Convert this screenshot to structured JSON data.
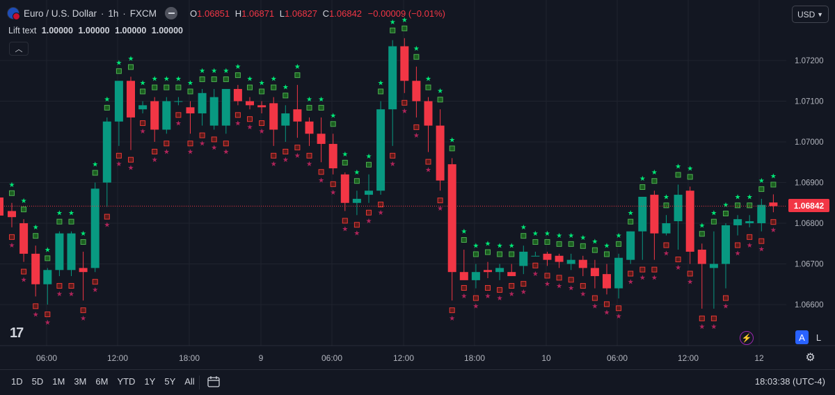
{
  "header": {
    "symbol": "Euro / U.S. Dollar",
    "interval": "1h",
    "exchange": "FXCM",
    "ohlc": {
      "o_label": "O",
      "o": "1.06851",
      "h_label": "H",
      "h": "1.06871",
      "l_label": "L",
      "l": "1.06827",
      "c_label": "C",
      "c": "1.06842",
      "change": "−0.00009 (−0.01%)"
    },
    "indicator_name": "Lift text",
    "indicator_values": [
      "1.00000",
      "1.00000",
      "1.00000",
      "1.00000"
    ],
    "collapse_icon": "chevron-up-icon"
  },
  "currency": "USD",
  "last_price_label": "1.06842",
  "colors": {
    "up": "#089981",
    "down": "#f23645",
    "star_up": "#00e676",
    "star_down": "#b0245a",
    "box_up": "#4caf50",
    "box_down": "#e53935",
    "bg": "#131722",
    "grid": "#1f232e"
  },
  "buttons": {
    "auto": "A",
    "log": "L"
  },
  "toolbar": {
    "ranges": [
      "1D",
      "5D",
      "1M",
      "3M",
      "6M",
      "YTD",
      "1Y",
      "5Y",
      "All"
    ],
    "clock": "18:03:38 (UTC-4)"
  },
  "chart_data": {
    "type": "candlestick",
    "y_axis": {
      "ticks": [
        1.072,
        1.071,
        1.07,
        1.069,
        1.068,
        1.067,
        1.066
      ],
      "tick_labels": [
        "1.07200",
        "1.07100",
        "1.07000",
        "1.06900",
        "1.06800",
        "1.06700",
        "1.06600"
      ]
    },
    "x_axis": {
      "tick_labels": [
        "06:00",
        "12:00",
        "18:00",
        "9",
        "06:00",
        "12:00",
        "18:00",
        "10",
        "06:00",
        "12:00",
        "12"
      ]
    },
    "last_price": 1.06842,
    "ohlc": [
      [
        1.0683,
        1.0685,
        1.0679,
        1.06815
      ],
      [
        1.068,
        1.0681,
        1.06705,
        1.06725
      ],
      [
        1.06725,
        1.06745,
        1.0662,
        1.0665
      ],
      [
        1.0665,
        1.0669,
        1.066,
        1.06685
      ],
      [
        1.06685,
        1.0678,
        1.0667,
        1.06775
      ],
      [
        1.06685,
        1.0678,
        1.0667,
        1.06775
      ],
      [
        1.0669,
        1.0673,
        1.0661,
        1.0668
      ],
      [
        1.0669,
        1.069,
        1.0668,
        1.06885
      ],
      [
        1.069,
        1.0706,
        1.0684,
        1.0705
      ],
      [
        1.0705,
        1.0715,
        1.0699,
        1.0715
      ],
      [
        1.0715,
        1.0716,
        1.0698,
        1.0706
      ],
      [
        1.0708,
        1.071,
        1.0707,
        1.0709
      ],
      [
        1.071,
        1.0711,
        1.07,
        1.0703
      ],
      [
        1.0703,
        1.0711,
        1.0702,
        1.071
      ],
      [
        1.071,
        1.0711,
        1.0709,
        1.071
      ],
      [
        1.07085,
        1.071,
        1.0702,
        1.0707
      ],
      [
        1.0707,
        1.0713,
        1.0704,
        1.0712
      ],
      [
        1.0704,
        1.0713,
        1.0703,
        1.0711
      ],
      [
        1.0704,
        1.0713,
        1.0702,
        1.0713
      ],
      [
        1.0713,
        1.0714,
        1.0709,
        1.071
      ],
      [
        1.071,
        1.0711,
        1.0708,
        1.0709
      ],
      [
        1.0709,
        1.071,
        1.0707,
        1.07085
      ],
      [
        1.07095,
        1.0711,
        1.0699,
        1.0703
      ],
      [
        1.0704,
        1.0709,
        1.07,
        1.0707
      ],
      [
        1.0708,
        1.0714,
        1.0701,
        1.0705
      ],
      [
        1.0705,
        1.0706,
        1.0699,
        1.0702
      ],
      [
        1.0702,
        1.0706,
        1.0695,
        1.06995
      ],
      [
        1.06995,
        1.0702,
        1.0692,
        1.06935
      ],
      [
        1.0692,
        1.06925,
        1.0683,
        1.0685
      ],
      [
        1.0685,
        1.0688,
        1.0682,
        1.0686
      ],
      [
        1.0687,
        1.0692,
        1.0685,
        1.0688
      ],
      [
        1.0688,
        1.071,
        1.0687,
        1.0708
      ],
      [
        1.0708,
        1.0725,
        1.0699,
        1.07235
      ],
      [
        1.07235,
        1.07255,
        1.0712,
        1.0715
      ],
      [
        1.0715,
        1.07185,
        1.0706,
        1.071
      ],
      [
        1.071,
        1.0711,
        1.06975,
        1.0704
      ],
      [
        1.0704,
        1.0708,
        1.0688,
        1.06905
      ],
      [
        1.06945,
        1.0696,
        1.0661,
        1.0668
      ],
      [
        1.0668,
        1.06735,
        1.06665,
        1.0666
      ],
      [
        1.0666,
        1.067,
        1.0664,
        1.0668
      ],
      [
        1.06685,
        1.06705,
        1.06665,
        1.0668
      ],
      [
        1.0668,
        1.067,
        1.0666,
        1.0669
      ],
      [
        1.0668,
        1.067,
        1.0667,
        1.0667
      ],
      [
        1.06695,
        1.06745,
        1.06675,
        1.0673
      ],
      [
        1.0672,
        1.0673,
        1.0672,
        1.0672
      ],
      [
        1.06725,
        1.0673,
        1.06695,
        1.0671
      ],
      [
        1.0672,
        1.06725,
        1.0669,
        1.06705
      ],
      [
        1.067,
        1.06725,
        1.06685,
        1.0671
      ],
      [
        1.0671,
        1.0672,
        1.0667,
        1.0669
      ],
      [
        1.0669,
        1.0671,
        1.0664,
        1.0667
      ],
      [
        1.06675,
        1.067,
        1.06625,
        1.0664
      ],
      [
        1.0664,
        1.06725,
        1.06615,
        1.06715
      ],
      [
        1.0671,
        1.0678,
        1.067,
        1.0678
      ],
      [
        1.0678,
        1.06865,
        1.0671,
        1.06865
      ],
      [
        1.0687,
        1.0688,
        1.0671,
        1.06775
      ],
      [
        1.06775,
        1.0682,
        1.0677,
        1.068
      ],
      [
        1.06805,
        1.06895,
        1.06735,
        1.0687
      ],
      [
        1.0688,
        1.0689,
        1.067,
        1.0673
      ],
      [
        1.06735,
        1.0675,
        1.0659,
        1.067
      ],
      [
        1.0669,
        1.0678,
        1.0659,
        1.067
      ],
      [
        1.067,
        1.068,
        1.0664,
        1.06795
      ],
      [
        1.06795,
        1.0682,
        1.0677,
        1.0681
      ],
      [
        1.068,
        1.0682,
        1.0679,
        1.06805
      ],
      [
        1.068,
        1.0686,
        1.0678,
        1.06845
      ],
      [
        1.06851,
        1.06871,
        1.06827,
        1.06842
      ]
    ]
  }
}
